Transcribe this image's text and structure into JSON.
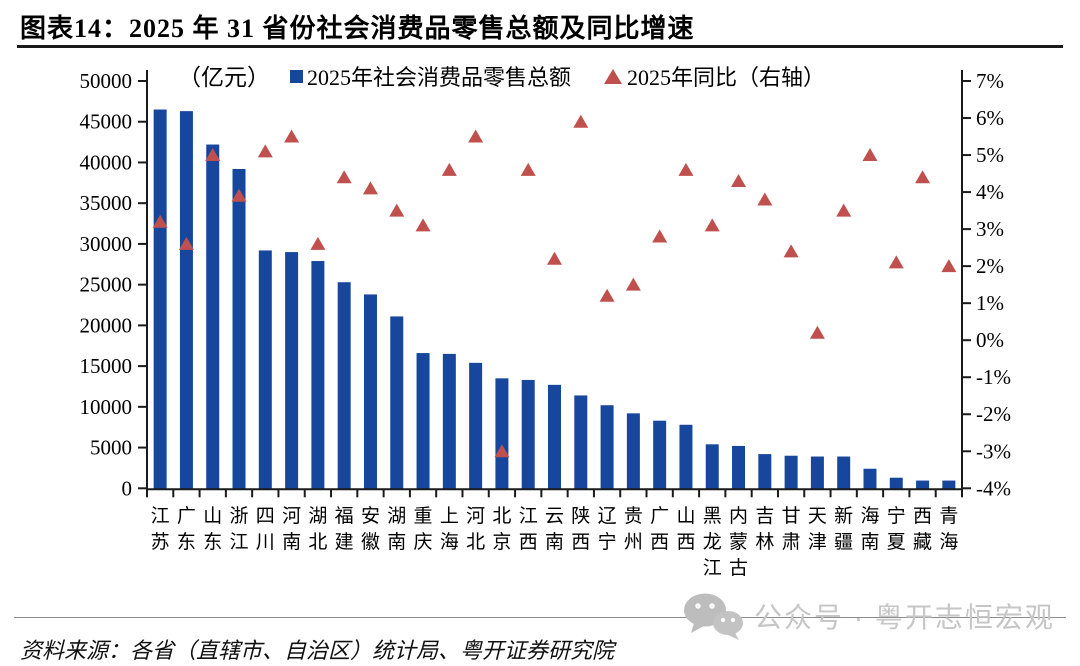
{
  "title": "图表14：2025 年 31 省份社会消费品零售总额及同比增速",
  "legend": {
    "unit_label": "（亿元）",
    "series1_label": "2025年社会消费品零售总额",
    "series2_label": "2025年同比（右轴）"
  },
  "footer": {
    "source": "资料来源：各省（直辖市、自治区）统计局、粤开证券研究院"
  },
  "watermark": {
    "icon": "wechat-icon",
    "text": "公众号 · 粤开志恒宏观"
  },
  "colors": {
    "bar": "#17479d",
    "triangle": "#c0504d",
    "axis": "#1a1a1a",
    "watermark": "#c6c6c6"
  },
  "chart_data": {
    "type": "bar+scatter",
    "title": "2025年31省份社会消费品零售总额及同比增速",
    "grid": false,
    "legend_position": "top",
    "categories": [
      "江苏",
      "广东",
      "山东",
      "浙江",
      "四川",
      "河南",
      "湖北",
      "福建",
      "安徽",
      "湖南",
      "重庆",
      "上海",
      "河北",
      "北京",
      "江西",
      "云南",
      "陕西",
      "辽宁",
      "贵州",
      "广西",
      "山西",
      "黑龙江",
      "内蒙古",
      "吉林",
      "甘肃",
      "天津",
      "新疆",
      "海南",
      "宁夏",
      "西藏",
      "青海"
    ],
    "series": [
      {
        "name": "2025年社会消费品零售总额",
        "type": "bar",
        "axis": "left",
        "unit": "亿元",
        "values": [
          46500,
          46300,
          42200,
          39200,
          29200,
          29000,
          27900,
          25300,
          23800,
          21100,
          16600,
          16500,
          15400,
          13500,
          13300,
          12700,
          11400,
          10200,
          9200,
          8300,
          7800,
          5400,
          5200,
          4200,
          4000,
          3900,
          3900,
          2400,
          1300,
          950,
          950
        ]
      },
      {
        "name": "2025年同比（右轴）",
        "type": "scatter",
        "marker": "triangle",
        "axis": "right",
        "unit": "%",
        "values": [
          3.2,
          2.6,
          5.0,
          3.9,
          5.1,
          5.5,
          2.6,
          4.4,
          4.1,
          3.5,
          3.1,
          4.6,
          5.5,
          -3.0,
          4.6,
          2.2,
          5.9,
          1.2,
          1.5,
          2.8,
          4.6,
          3.1,
          4.3,
          3.8,
          2.4,
          0.2,
          3.5,
          5.0,
          2.1,
          4.4,
          2.0
        ]
      }
    ],
    "left_axis": {
      "unit": "亿元",
      "min": 0,
      "max": 50000,
      "step": 5000,
      "ticks": [
        "50000",
        "45000",
        "40000",
        "35000",
        "30000",
        "25000",
        "20000",
        "15000",
        "10000",
        "5000",
        "0"
      ]
    },
    "right_axis": {
      "min": -4,
      "max": 7,
      "step": 1,
      "ticks": [
        "7%",
        "6%",
        "5%",
        "4%",
        "3%",
        "2%",
        "1%",
        "0%",
        "-1%",
        "-2%",
        "-3%",
        "-4%"
      ]
    }
  }
}
